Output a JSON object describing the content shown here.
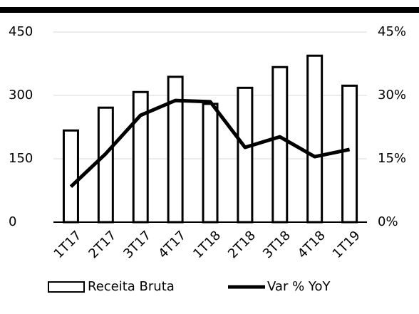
{
  "chart_data": {
    "type": "bar",
    "categories": [
      "1T17",
      "2T17",
      "3T17",
      "4T17",
      "1T18",
      "2T18",
      "3T18",
      "4T18",
      "1T19"
    ],
    "series": [
      {
        "name": "Receita Bruta",
        "type": "bar",
        "color": "#ffffff",
        "values": [
          217,
          271,
          308,
          344,
          280,
          318,
          367,
          394,
          323
        ]
      },
      {
        "name": "Var % YoY",
        "type": "line",
        "axis": "y2",
        "color": "#000000",
        "values": [
          8.4,
          16.2,
          25.3,
          28.8,
          28.5,
          17.7,
          20.2,
          15.5,
          17.2
        ]
      }
    ],
    "ylim": [
      0,
      450
    ],
    "yticks": [
      0,
      150,
      300,
      450
    ],
    "y2lim": [
      0,
      45
    ],
    "y2ticks": [
      {
        "value": 0,
        "label": "0%"
      },
      {
        "value": 15,
        "label": "15%"
      },
      {
        "value": 30,
        "label": "30%"
      },
      {
        "value": 45,
        "label": "45%"
      }
    ],
    "grid": true,
    "legend": "bottom"
  }
}
